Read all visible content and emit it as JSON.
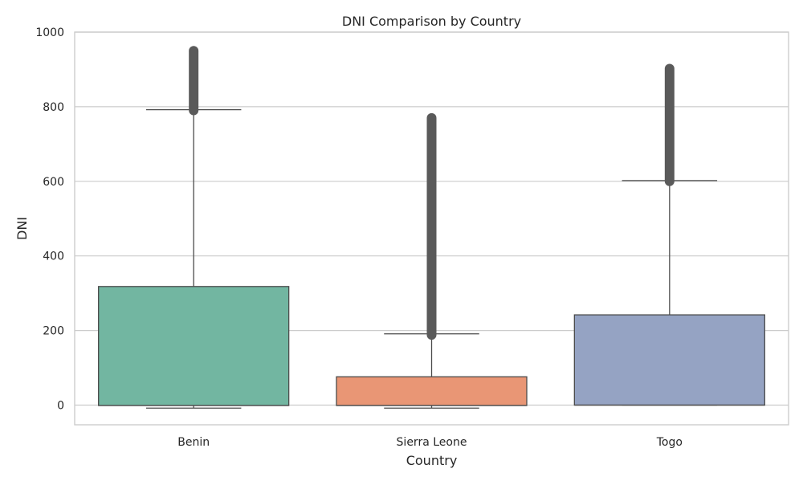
{
  "chart_data": {
    "type": "box",
    "title": "DNI Comparison by Country",
    "xlabel": "Country",
    "ylabel": "DNI",
    "categories": [
      "Benin",
      "Sierra Leone",
      "Togo"
    ],
    "ylim": [
      -55,
      1000
    ],
    "yticks": [
      0,
      200,
      400,
      600,
      800,
      1000
    ],
    "grid": true,
    "boxes": [
      {
        "category": "Benin",
        "color": "#72b6a1",
        "whisker_low": -8,
        "q1": -1,
        "median": -1,
        "q3": 318,
        "whisker_high": 792,
        "outlier_min": 790,
        "outlier_max": 950
      },
      {
        "category": "Sierra Leone",
        "color": "#e99675",
        "whisker_low": -8,
        "q1": -1,
        "median": -1,
        "q3": 76,
        "whisker_high": 191,
        "outlier_min": 188,
        "outlier_max": 770
      },
      {
        "category": "Togo",
        "color": "#95a3c3",
        "whisker_low": 0,
        "q1": 0,
        "median": 0,
        "q3": 242,
        "whisker_high": 602,
        "outlier_min": 600,
        "outlier_max": 902
      }
    ]
  }
}
